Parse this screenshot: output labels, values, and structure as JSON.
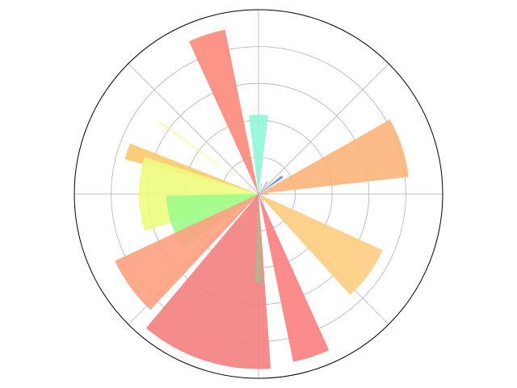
{
  "chart_data": {
    "type": "polar_bar",
    "rlim": [
      0,
      10
    ],
    "rticks": [
      2,
      4,
      6,
      8
    ],
    "thetaticks": [
      0,
      45,
      90,
      135,
      180,
      225,
      270,
      315
    ],
    "grid": true,
    "bars": [
      {
        "theta": 0,
        "width": 6,
        "radius": 0.5,
        "color": "#7080f5"
      },
      {
        "theta": 18,
        "width": 23,
        "radius": 8.2,
        "color": "#fdb57a"
      },
      {
        "theta": 36,
        "width": 5,
        "radius": 1.6,
        "color": "#6f7ff7"
      },
      {
        "theta": 54,
        "width": 4,
        "radius": 0.8,
        "color": "#7a8cf0"
      },
      {
        "theta": 72,
        "width": 3,
        "radius": 0.6,
        "color": "#7a8cf0"
      },
      {
        "theta": 90,
        "width": 14,
        "radius": 4.3,
        "color": "#8ff5d8"
      },
      {
        "theta": 108,
        "width": 13,
        "radius": 9.1,
        "color": "#fc8a7a"
      },
      {
        "theta": 144,
        "width": 0.6,
        "radius": 6.6,
        "color": "#f5fb83"
      },
      {
        "theta": 162,
        "width": 7,
        "radius": 7.5,
        "color": "#fbc96c"
      },
      {
        "theta": 180,
        "width": 36,
        "radius": 6.5,
        "color": "#eefc7e"
      },
      {
        "theta": 198,
        "width": 34,
        "radius": 5.0,
        "color": "#9dfc8a"
      },
      {
        "theta": 216,
        "width": 22,
        "radius": 8.6,
        "color": "#fda07f"
      },
      {
        "theta": 234,
        "width": 3,
        "radius": 0.4,
        "color": "#7a8cf0"
      },
      {
        "theta": 252,
        "width": 44,
        "radius": 9.5,
        "color": "#f48080"
      },
      {
        "theta": 270,
        "width": 5,
        "radius": 4.8,
        "color": "#b4b48e"
      },
      {
        "theta": 288,
        "width": 12.6,
        "radius": 9.3,
        "color": "#fc8080"
      },
      {
        "theta": 306,
        "width": 4,
        "radius": 0.5,
        "color": "#7a8cf0"
      },
      {
        "theta": 324,
        "width": 23.5,
        "radius": 7.4,
        "color": "#fecd80"
      },
      {
        "theta": 342,
        "width": 3,
        "radius": 0.3,
        "color": "#7a8cf0"
      }
    ]
  }
}
